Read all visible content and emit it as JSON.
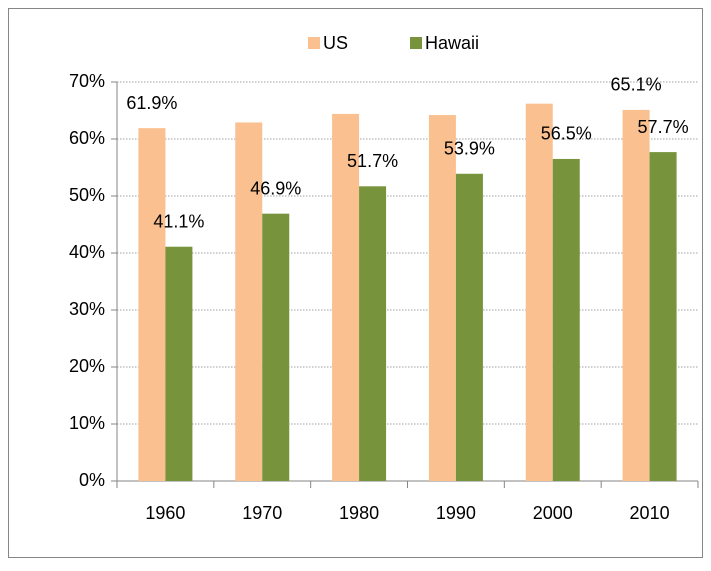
{
  "chart_data": {
    "type": "bar",
    "categories": [
      "1960",
      "1970",
      "1980",
      "1990",
      "2000",
      "2010"
    ],
    "series": [
      {
        "name": "US",
        "color": "#fac090",
        "values": [
          61.9,
          62.9,
          64.4,
          64.2,
          66.2,
          65.1
        ],
        "value_labels": [
          "61.9%",
          null,
          null,
          null,
          null,
          "65.1%"
        ]
      },
      {
        "name": "Hawaii",
        "color": "#77933c",
        "values": [
          41.1,
          46.9,
          51.7,
          53.9,
          56.5,
          57.7
        ],
        "value_labels": [
          "41.1%",
          "46.9%",
          "51.7%",
          "53.9%",
          "56.5%",
          "57.7%"
        ]
      }
    ],
    "ylim": [
      0,
      70
    ],
    "yticks": [
      {
        "value": 0,
        "label": "0%"
      },
      {
        "value": 10,
        "label": "10%"
      },
      {
        "value": 20,
        "label": "20%"
      },
      {
        "value": 30,
        "label": "30%"
      },
      {
        "value": 40,
        "label": "40%"
      },
      {
        "value": 50,
        "label": "50%"
      },
      {
        "value": 60,
        "label": "60%"
      },
      {
        "value": 70,
        "label": "70%"
      }
    ],
    "grid": true,
    "legend": "top"
  }
}
